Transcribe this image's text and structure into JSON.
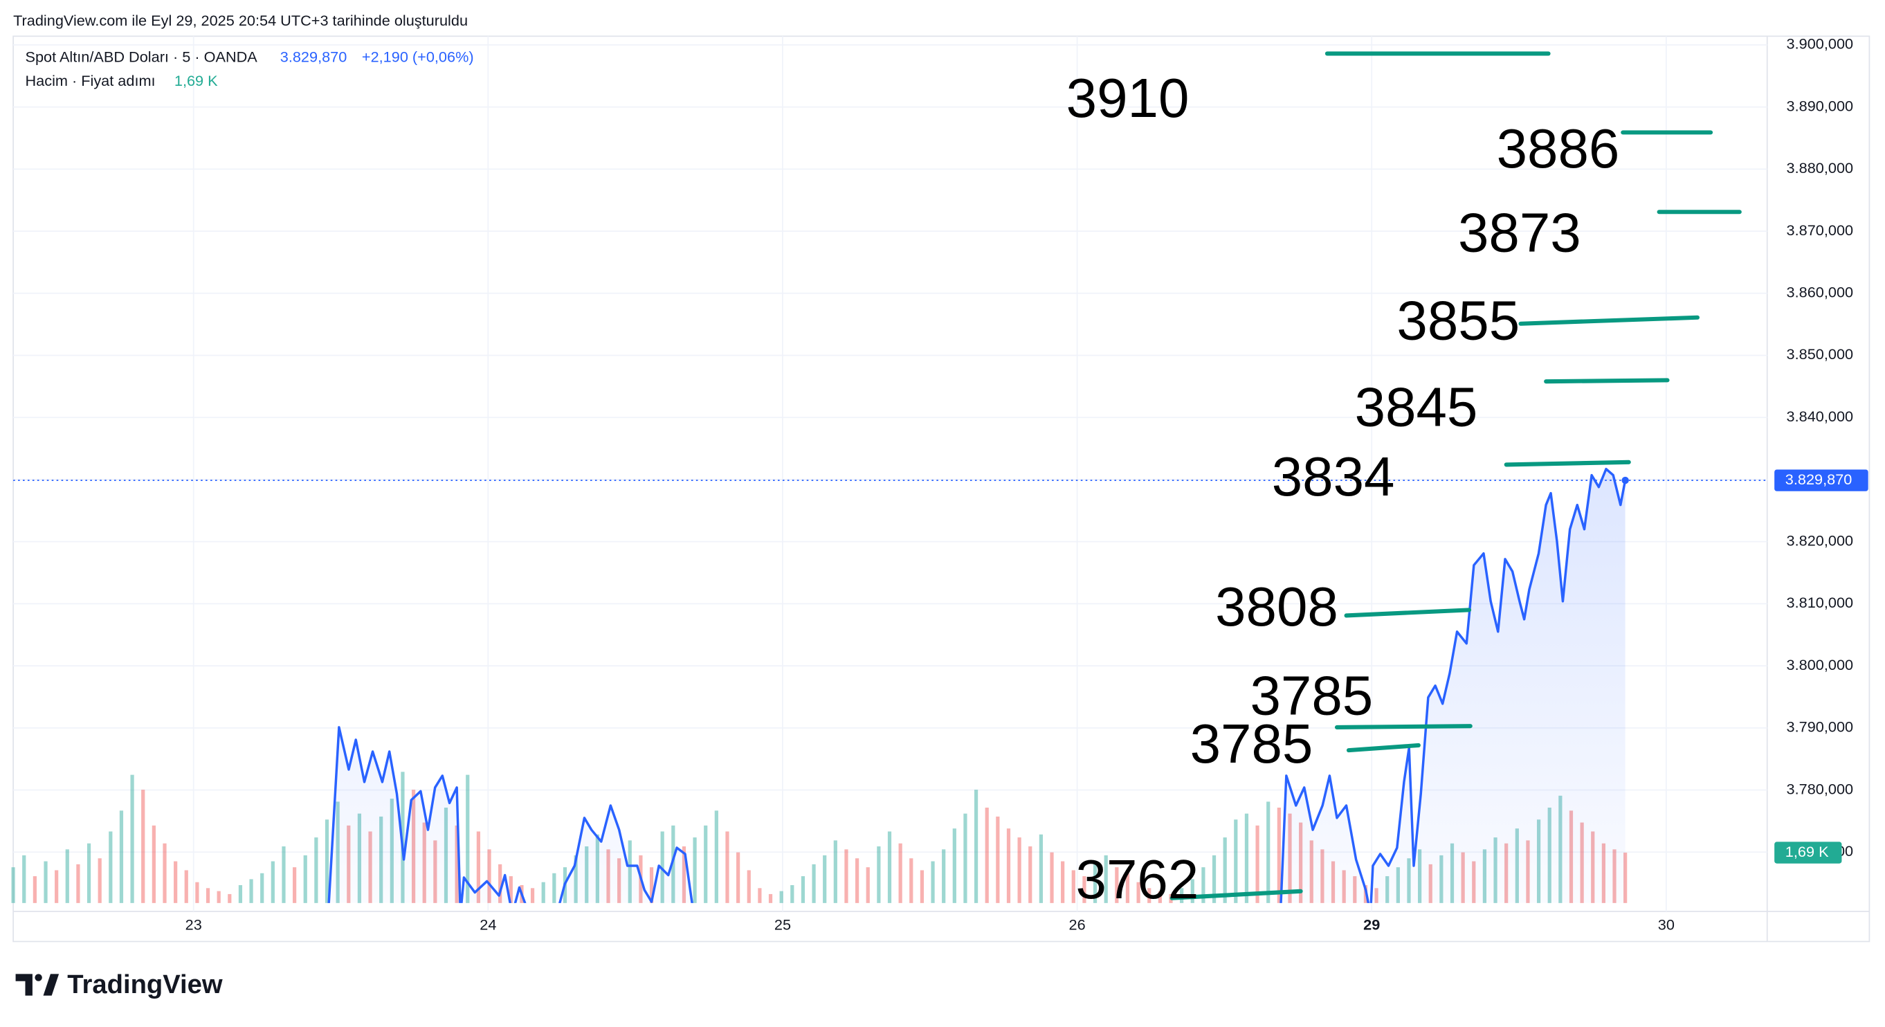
{
  "created_note": "TradingView.com ile Eyl 29, 2025 20:54 UTC+3 tarihinde oluşturuldu",
  "brand": "TradingView",
  "chart_data": {
    "type": "line",
    "title": "Spot Altın/ABD Doları · 5 · OANDA",
    "last_value_label": "3.829,870",
    "change_label": "+2,190 (+0,06%)",
    "ylim": [
      3761.8,
      3901.4
    ],
    "yticks": [
      {
        "value": 3770,
        "label": "3.770,000"
      },
      {
        "value": 3780,
        "label": "3.780,000"
      },
      {
        "value": 3790,
        "label": "3.790,000"
      },
      {
        "value": 3800,
        "label": "3.800,000"
      },
      {
        "value": 3810,
        "label": "3.810,000"
      },
      {
        "value": 3820,
        "label": "3.820,000"
      },
      {
        "value": 3830,
        "label": "3.830,000"
      },
      {
        "value": 3840,
        "label": "3.840,000"
      },
      {
        "value": 3850,
        "label": "3.850,000"
      },
      {
        "value": 3860,
        "label": "3.860,000"
      },
      {
        "value": 3870,
        "label": "3.870,000"
      },
      {
        "value": 3880,
        "label": "3.880,000"
      },
      {
        "value": 3890,
        "label": "3.890,000"
      },
      {
        "value": 3900,
        "label": "3.900,000"
      }
    ],
    "xlim": [
      22.39,
      30.34
    ],
    "xticks": [
      23,
      24,
      25,
      26,
      29,
      30
    ],
    "grid": true,
    "series": [
      {
        "name": "Spot Altın/ABD Doları",
        "color": "#2962ff",
        "x": [
          23.457,
          23.494,
          23.527,
          23.551,
          23.58,
          23.608,
          23.641,
          23.665,
          23.69,
          23.714,
          23.739,
          23.771,
          23.796,
          23.82,
          23.845,
          23.869,
          23.894,
          23.906,
          23.918,
          23.955,
          23.996,
          24.037,
          24.057,
          24.082,
          24.106,
          24.139,
          24.233,
          24.261,
          24.294,
          24.327,
          24.351,
          24.384,
          24.416,
          24.445,
          24.473,
          24.506,
          24.531,
          24.555,
          24.58,
          24.612,
          24.641,
          24.669,
          24.698,
          26.69,
          26.71,
          26.743,
          26.771,
          26.8,
          26.833,
          26.857,
          26.882,
          26.914,
          26.947,
          26.98,
          26.996,
          29.004,
          29.029,
          29.057,
          29.086,
          29.11,
          29.127,
          29.143,
          29.167,
          29.192,
          29.216,
          29.241,
          29.265,
          29.29,
          29.322,
          29.347,
          29.38,
          29.404,
          29.429,
          29.453,
          29.478,
          29.502,
          29.518,
          29.535,
          29.567,
          29.592,
          29.608,
          29.629,
          29.649,
          29.673,
          29.698,
          29.722,
          29.747,
          29.771,
          29.796,
          29.82,
          29.845,
          29.861
        ],
        "values": [
          3760,
          3790.1,
          3783.3,
          3788.1,
          3781.3,
          3786.2,
          3781.3,
          3786.2,
          3779.4,
          3768.8,
          3778.4,
          3779.8,
          3773.6,
          3780.4,
          3782.3,
          3777.9,
          3780.4,
          3760,
          3765.9,
          3763.5,
          3765.3,
          3763.0,
          3766.3,
          3760,
          3764.3,
          3760,
          3760,
          3764.9,
          3767.8,
          3775.5,
          3773.6,
          3771.7,
          3777.5,
          3773.6,
          3767.8,
          3767.8,
          3763.9,
          3762.0,
          3767.8,
          3766.3,
          3770.7,
          3769.7,
          3760,
          3760,
          3782.3,
          3777.5,
          3780.4,
          3773.6,
          3777.5,
          3782.3,
          3775.5,
          3777.5,
          3768.8,
          3763.9,
          3760,
          3767.8,
          3769.7,
          3767.8,
          3770.7,
          3781.3,
          3786.8,
          3767.8,
          3779.4,
          3794.9,
          3796.8,
          3793.9,
          3798.8,
          3805.5,
          3803.6,
          3816.2,
          3818.1,
          3810.4,
          3805.5,
          3817.2,
          3815.2,
          3810.4,
          3807.5,
          3812.3,
          3818.1,
          3825.9,
          3827.8,
          3820.1,
          3810.4,
          3822.0,
          3825.9,
          3822.0,
          3830.7,
          3828.8,
          3831.7,
          3830.7,
          3825.9,
          3829.87
        ]
      }
    ],
    "volume": {
      "name": "Hacim · Fiyat adımı",
      "last_value_label": "1,69 K",
      "vlim": [
        0,
        7.5
      ],
      "up_color": "#26a69a",
      "down_color": "#ef5350",
      "values": [
        1.2,
        1.6,
        0.9,
        1.4,
        1.1,
        1.8,
        1.3,
        2.0,
        1.5,
        2.4,
        3.1,
        4.3,
        3.8,
        2.6,
        2.0,
        1.4,
        1.1,
        0.7,
        0.5,
        0.4,
        0.3,
        0.6,
        0.8,
        1.0,
        1.4,
        1.9,
        1.2,
        1.6,
        2.2,
        2.8,
        3.4,
        2.6,
        3.0,
        2.4,
        2.9,
        3.5,
        4.4,
        3.8,
        2.7,
        2.1,
        3.2,
        2.6,
        4.3,
        2.4,
        1.8,
        1.3,
        0.9,
        0.6,
        0.5,
        0.7,
        1.0,
        1.2,
        1.6,
        1.9,
        2.3,
        1.8,
        1.5,
        2.1,
        1.6,
        1.2,
        2.4,
        2.6,
        1.9,
        2.2,
        2.6,
        3.1,
        2.4,
        1.7,
        1.1,
        0.5,
        0.3,
        0.4,
        0.6,
        0.9,
        1.3,
        1.6,
        2.1,
        1.8,
        1.5,
        1.2,
        1.9,
        2.4,
        2.0,
        1.5,
        1.1,
        1.4,
        1.8,
        2.5,
        3.0,
        3.8,
        3.2,
        2.9,
        2.5,
        2.2,
        1.9,
        2.3,
        1.7,
        1.4,
        1.1,
        0.9,
        1.3,
        1.6,
        1.2,
        1.0,
        0.7,
        0.5,
        0.4,
        0.3,
        0.5,
        0.8,
        1.2,
        1.6,
        2.2,
        2.8,
        3.0,
        2.6,
        3.4,
        3.2,
        3.0,
        2.7,
        2.1,
        1.8,
        1.4,
        1.1,
        0.9,
        0.6,
        0.5,
        0.9,
        1.2,
        1.5,
        1.8,
        1.3,
        1.6,
        2.0,
        1.7,
        1.4,
        1.8,
        2.2,
        2.0,
        2.5,
        2.1,
        2.8,
        3.2,
        3.6,
        3.1,
        2.7,
        2.4,
        2.0,
        1.8,
        1.69
      ]
    },
    "annotation_color": "#089981",
    "annotations": [
      {
        "text": "3910",
        "x": [
          26.849,
          29.6
        ],
        "y": [
          3898.6,
          3898.6
        ]
      },
      {
        "text": "3886",
        "x": [
          29.853,
          30.151
        ],
        "y": [
          3885.9,
          3885.9
        ]
      },
      {
        "text": "3873",
        "x": [
          29.976,
          30.249
        ],
        "y": [
          3873.1,
          3873.1
        ]
      },
      {
        "text": "3855",
        "x": [
          29.506,
          30.106
        ],
        "y": [
          3855.1,
          3856.1
        ]
      },
      {
        "text": "3845",
        "x": [
          29.592,
          30.004
        ],
        "y": [
          3845.8,
          3846.0
        ]
      },
      {
        "text": "3834",
        "x": [
          29.457,
          29.873
        ],
        "y": [
          3832.4,
          3832.8
        ]
      },
      {
        "text": "3808",
        "x": [
          26.914,
          29.331
        ],
        "y": [
          3808.1,
          3809.0
        ]
      },
      {
        "text": "3785",
        "x": [
          26.882,
          29.335
        ],
        "y": [
          3790.1,
          3790.3
        ]
      },
      {
        "text": "3785",
        "x": [
          26.922,
          29.159
        ],
        "y": [
          3786.4,
          3787.2
        ]
      },
      {
        "text": "3762",
        "x": [
          26.322,
          26.759
        ],
        "y": [
          3762.6,
          3763.7
        ]
      }
    ]
  }
}
